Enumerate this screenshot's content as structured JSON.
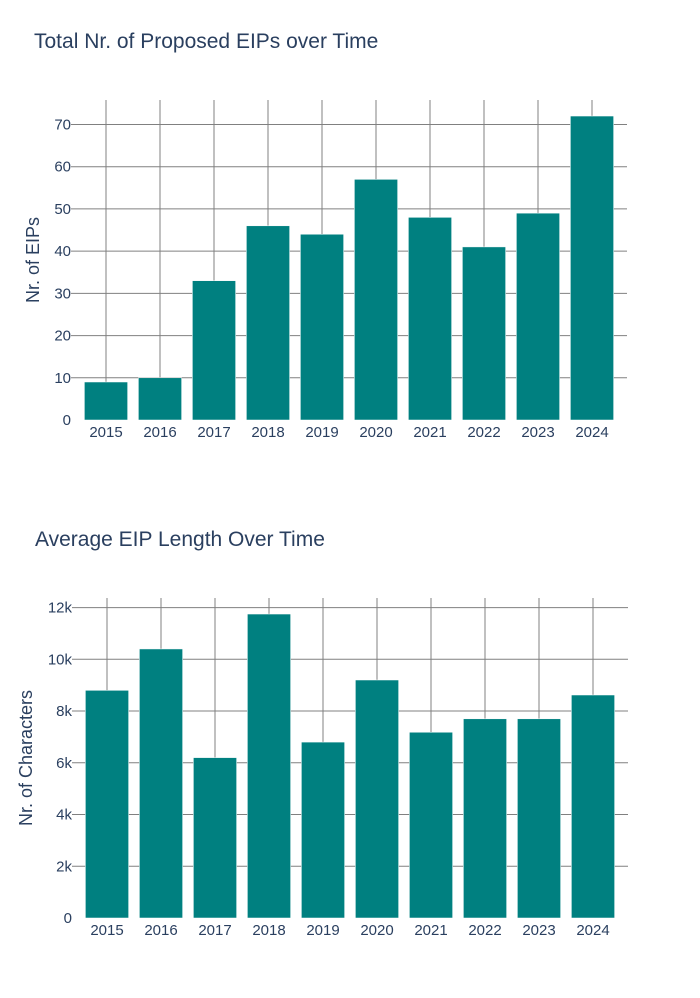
{
  "colors": {
    "bar": "#008080",
    "grid": "#808080",
    "text": "#2a3f5f"
  },
  "chart_data": [
    {
      "type": "bar",
      "title": "Total Nr. of Proposed EIPs over Time",
      "xlabel": "",
      "ylabel": "Nr. of EIPs",
      "categories": [
        "2015",
        "2016",
        "2017",
        "2018",
        "2019",
        "2020",
        "2021",
        "2022",
        "2023",
        "2024"
      ],
      "values": [
        9,
        10,
        33,
        46,
        44,
        57,
        48,
        41,
        49,
        72
      ],
      "ylim": [
        0,
        75.8
      ],
      "yticks": [
        0,
        10,
        20,
        30,
        40,
        50,
        60,
        70
      ],
      "ytick_labels": [
        "0",
        "10",
        "20",
        "30",
        "40",
        "50",
        "60",
        "70"
      ],
      "grid": true
    },
    {
      "type": "bar",
      "title": "Average EIP Length Over Time",
      "xlabel": "",
      "ylabel": "Nr. of Characters",
      "categories": [
        "2015",
        "2016",
        "2017",
        "2018",
        "2019",
        "2020",
        "2021",
        "2022",
        "2023",
        "2024"
      ],
      "values": [
        8800,
        10400,
        6200,
        11750,
        6800,
        9200,
        7180,
        7700,
        7700,
        8620
      ],
      "ylim": [
        0,
        12370
      ],
      "yticks": [
        0,
        2000,
        4000,
        6000,
        8000,
        10000,
        12000
      ],
      "ytick_labels": [
        "0",
        "2k",
        "4k",
        "6k",
        "8k",
        "10k",
        "12k"
      ],
      "grid": true
    }
  ]
}
